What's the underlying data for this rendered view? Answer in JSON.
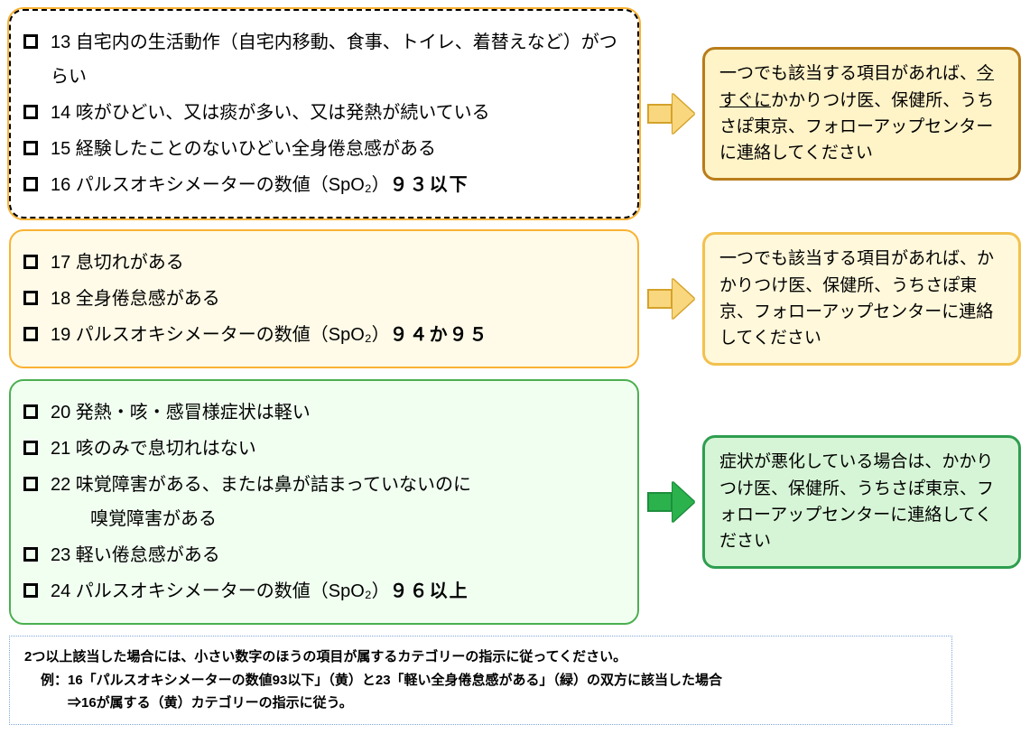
{
  "rows": [
    {
      "boxClass": "box-dashed",
      "arrowClass": "yellow",
      "calloutClass": "dark-yellow",
      "items": [
        {
          "num": "13",
          "text": "自宅内の生活動作（自宅内移動、食事、トイレ、着替えなど）がつらい"
        },
        {
          "num": "14",
          "text": "咳がひどい、又は痰が多い、又は発熱が続いている"
        },
        {
          "num": "15",
          "text": "経験したことのないひどい全身倦怠感がある"
        },
        {
          "num": "16",
          "text": "パルスオキシメーターの数値（SpO₂）",
          "suffix": "９３以下",
          "suffixBold": true
        }
      ],
      "callout": {
        "pre": "一つでも該当する項目があれば、",
        "underline": "今すぐに",
        "post": "かかりつけ医、保健所、うちさぽ東京、フォローアップセンターに連絡してください"
      }
    },
    {
      "boxClass": "yellow",
      "arrowClass": "yellow",
      "calloutClass": "light-yellow",
      "items": [
        {
          "num": "17",
          "text": "息切れがある"
        },
        {
          "num": "18",
          "text": "全身倦怠感がある"
        },
        {
          "num": "19",
          "text": "パルスオキシメーターの数値（SpO₂）",
          "suffix": "９４か９５",
          "suffixBold": true
        }
      ],
      "callout": {
        "pre": "一つでも該当する項目があれば、かかりつけ医、保健所、うちさぽ東京、フォローアップセンターに連絡してください"
      }
    },
    {
      "boxClass": "green",
      "arrowClass": "green",
      "calloutClass": "green",
      "items": [
        {
          "num": "20",
          "text": "発熱・咳・感冒様症状は軽い"
        },
        {
          "num": "21",
          "text": "咳のみで息切れはない"
        },
        {
          "num": "22",
          "text": "味覚障害がある、または鼻が詰まっていないのに",
          "line2": "嗅覚障害がある"
        },
        {
          "num": "23",
          "text": "軽い倦怠感がある"
        },
        {
          "num": "24",
          "text": "パルスオキシメーターの数値（SpO₂）",
          "suffix": "９６以上",
          "suffixBold": true
        }
      ],
      "callout": {
        "pre": "症状が悪化している場合は、かかりつけ医、保健所、うちさぽ東京、フォローアップセンターに連絡してください"
      }
    }
  ],
  "footer": {
    "line1": "2つ以上該当した場合には、小さい数字のほうの項目が属するカテゴリーの指示に従ってください。",
    "line2": "例：16「パルスオキシメーターの数値93以下」（黄）と23「軽い全身倦怠感がある」（緑）の双方に該当した場合",
    "line3": "⇒16が属する（黄）カテゴリーの指示に従う。"
  },
  "colors": {
    "yellowBorder": "#f9b233",
    "yellowFill": "#fffbe8",
    "darkYellowBorder": "#b87d1a",
    "darkYellowFill": "#fff3c8",
    "lightYellowBorder": "#f2c14e",
    "lightYellowFill": "#fff8db",
    "greenBorder": "#2e9e4f",
    "greenFill": "#d6f5d6",
    "arrowGreen": "#2bb24c",
    "arrowYellow": "#f9d77e",
    "footerBorder": "#7ea6d9"
  },
  "fontSizes": {
    "checklist": 20,
    "callout": 19,
    "footer": 15
  }
}
